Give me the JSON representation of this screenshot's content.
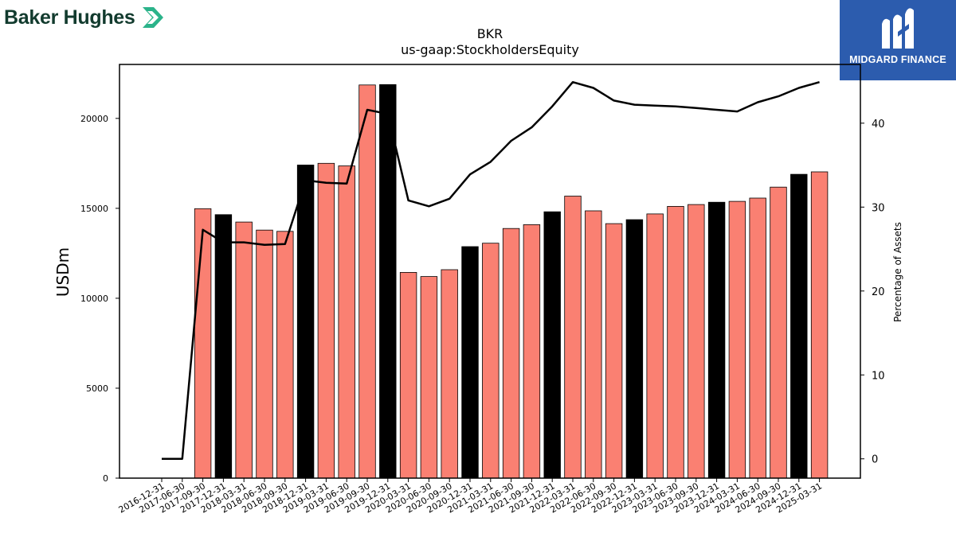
{
  "branding": {
    "left_logo_text": "Baker Hughes",
    "right_logo_text": "MIDGARD FINANCE",
    "right_logo_bg": "#2c5cae",
    "left_logo_color": "#123b2e",
    "left_mark_color": "#2bb38a"
  },
  "chart_data": {
    "type": "bar",
    "title": "BKR",
    "subtitle": "us-gaap:StockholdersEquity",
    "ylabel": "USDm",
    "y2label": "Percentage of Assets",
    "ylim": [
      0,
      23000
    ],
    "y2lim": [
      -2.3,
      47.0
    ],
    "yticks": [
      0,
      5000,
      10000,
      15000,
      20000
    ],
    "y2ticks": [
      0,
      10,
      20,
      30,
      40
    ],
    "bar_color": "#fa8072",
    "highlight_color": "#000000",
    "line_color": "#000000",
    "categories": [
      "2016-12-31",
      "2017-06-30",
      "2017-09-30",
      "2017-12-31",
      "2018-03-31",
      "2018-06-30",
      "2018-09-30",
      "2018-12-31",
      "2019-03-31",
      "2019-06-30",
      "2019-09-30",
      "2019-12-31",
      "2020-03-31",
      "2020-06-30",
      "2020-09-30",
      "2020-12-31",
      "2021-03-31",
      "2021-06-30",
      "2021-09-30",
      "2021-12-31",
      "2022-03-31",
      "2022-06-30",
      "2022-09-30",
      "2022-12-31",
      "2023-03-31",
      "2023-06-30",
      "2023-09-30",
      "2023-12-31",
      "2024-03-31",
      "2024-06-30",
      "2024-09-30",
      "2024-12-31",
      "2025-03-31"
    ],
    "series": [
      {
        "type": "bar",
        "values": [
          null,
          null,
          14980,
          14650,
          14240,
          13790,
          13720,
          17410,
          17500,
          17360,
          21860,
          21880,
          11440,
          11210,
          11590,
          12870,
          13060,
          13880,
          14090,
          14810,
          15680,
          14860,
          14150,
          14370,
          14690,
          15110,
          15210,
          15340,
          15390,
          15570,
          16180,
          16890,
          17030
        ],
        "highlight": [
          false,
          false,
          false,
          true,
          false,
          false,
          false,
          true,
          false,
          false,
          false,
          true,
          false,
          false,
          false,
          true,
          false,
          false,
          false,
          true,
          false,
          false,
          false,
          true,
          false,
          false,
          false,
          true,
          false,
          false,
          false,
          true,
          false
        ]
      },
      {
        "type": "line",
        "axis": "right",
        "values": [
          0.0,
          0.0,
          27.3,
          25.8,
          25.8,
          25.5,
          25.6,
          33.2,
          32.9,
          32.8,
          41.6,
          41.1,
          30.8,
          30.1,
          31.0,
          33.9,
          35.4,
          37.9,
          39.5,
          42.0,
          44.9,
          44.2,
          42.7,
          42.2,
          42.1,
          42.0,
          41.8,
          41.6,
          41.4,
          42.5,
          43.2,
          44.2,
          44.9
        ]
      }
    ]
  }
}
